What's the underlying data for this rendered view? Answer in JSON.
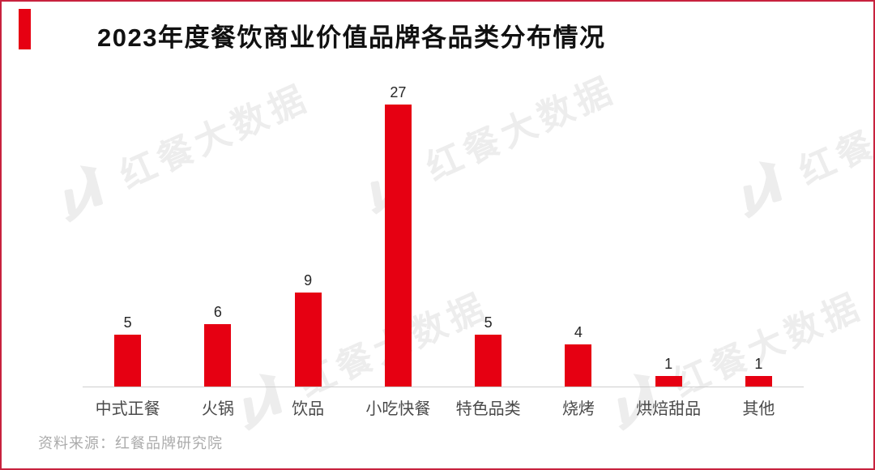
{
  "frame": {
    "border_color": "#c8223e",
    "background": "#ffffff"
  },
  "header": {
    "title": "2023年度餐饮商业价值品牌各品类分布情况",
    "accent_color": "#e60012"
  },
  "watermark": {
    "text": "红餐大数据",
    "color": "#ededed",
    "logo": "hongcan-logo-icon"
  },
  "chart_data": {
    "type": "bar",
    "title": "2023年度餐饮商业价值品牌各品类分布情况",
    "categories": [
      "中式正餐",
      "火锅",
      "饮品",
      "小吃快餐",
      "特色品类",
      "烧烤",
      "烘焙甜品",
      "其他"
    ],
    "values": [
      5,
      6,
      9,
      27,
      5,
      4,
      1,
      1
    ],
    "xlabel": "",
    "ylabel": "",
    "ylim": [
      0,
      30
    ],
    "bar_color": "#e60012",
    "value_labels_shown": true,
    "grid": false,
    "legend": false,
    "axis_line_color": "#cfcfcf"
  },
  "footer": {
    "source": "资料来源：红餐品牌研究院"
  }
}
